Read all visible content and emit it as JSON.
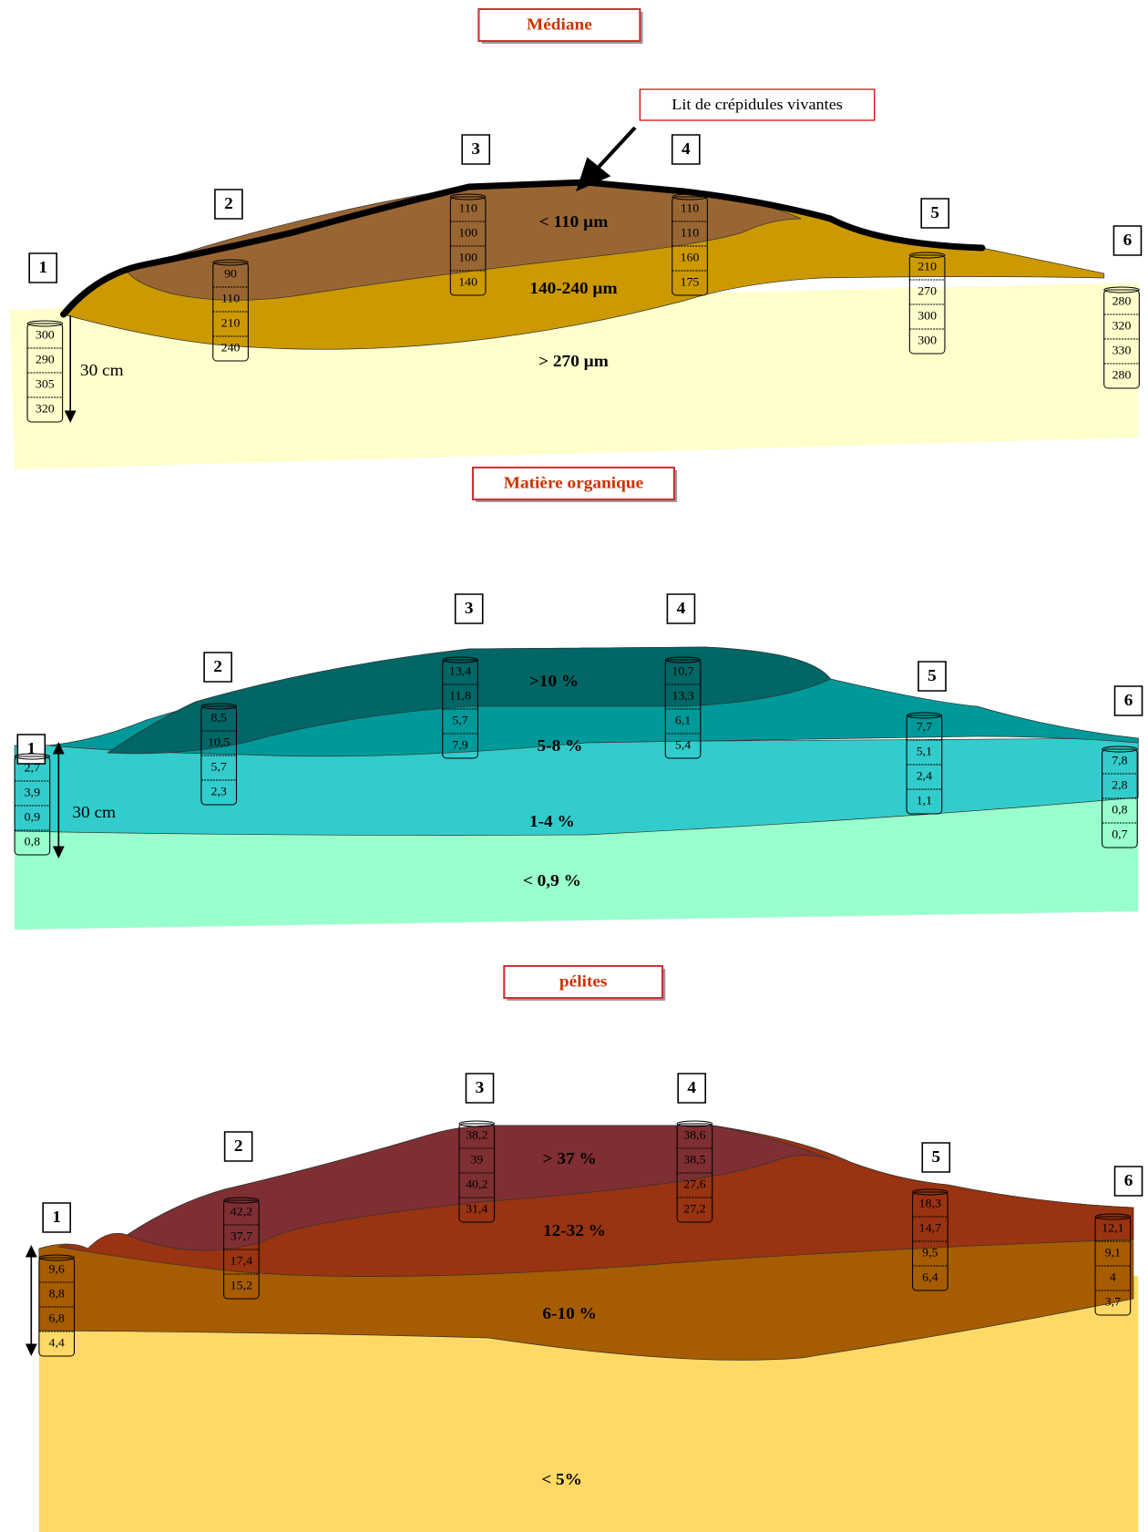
{
  "panels": [
    {
      "title": "Médiane",
      "annotation": "Lit de crépidules vivantes",
      "depth_label": "30 cm",
      "zones": [
        "< 110 µm",
        "140-240 µm",
        "> 270 µm"
      ],
      "cores": [
        {
          "label": "1",
          "values": [
            "300",
            "290",
            "305",
            "320"
          ]
        },
        {
          "label": "2",
          "values": [
            "90",
            "110",
            "210",
            "240"
          ]
        },
        {
          "label": "3",
          "values": [
            "110",
            "100",
            "100",
            "140"
          ]
        },
        {
          "label": "4",
          "values": [
            "110",
            "110",
            "160",
            "175"
          ]
        },
        {
          "label": "5",
          "values": [
            "210",
            "270",
            "300",
            "300"
          ]
        },
        {
          "label": "6",
          "values": [
            "280",
            "320",
            "330",
            "280"
          ]
        }
      ]
    },
    {
      "title": "Matière organique",
      "depth_label": "30 cm",
      "zones": [
        ">10 %",
        "5-8 %",
        "1-4 %",
        "< 0,9 %"
      ],
      "cores": [
        {
          "label": "1",
          "values": [
            "2,7",
            "3,9",
            "0,9",
            "0,8"
          ]
        },
        {
          "label": "2",
          "values": [
            "8,5",
            "10,5",
            "5,7",
            "2,3"
          ]
        },
        {
          "label": "3",
          "values": [
            "13,4",
            "11,8",
            "5,7",
            "7,9"
          ]
        },
        {
          "label": "4",
          "values": [
            "10,7",
            "13,3",
            "6,1",
            "5,4"
          ]
        },
        {
          "label": "5",
          "values": [
            "7,7",
            "5,1",
            "2,4",
            "1,1"
          ]
        },
        {
          "label": "6",
          "values": [
            "7,8",
            "2,8",
            "0,8",
            "0,7"
          ]
        }
      ]
    },
    {
      "title": "pélites",
      "zones": [
        "> 37 %",
        "12-32 %",
        "6-10 %",
        "< 5%"
      ],
      "cores": [
        {
          "label": "1",
          "values": [
            "9,6",
            "8,8",
            "6,8",
            "4,4"
          ]
        },
        {
          "label": "2",
          "values": [
            "42,2",
            "37,7",
            "17,4",
            "15,2"
          ]
        },
        {
          "label": "3",
          "values": [
            "38,2",
            "39",
            "40,2",
            "31,4"
          ]
        },
        {
          "label": "4",
          "values": [
            "38,6",
            "38,5",
            "27,6",
            "27,2"
          ]
        },
        {
          "label": "5",
          "values": [
            "18,3",
            "14,7",
            "9,5",
            "6,4"
          ]
        },
        {
          "label": "6",
          "values": [
            "12,1",
            "9,1",
            "4",
            "3,7"
          ]
        }
      ]
    }
  ]
}
